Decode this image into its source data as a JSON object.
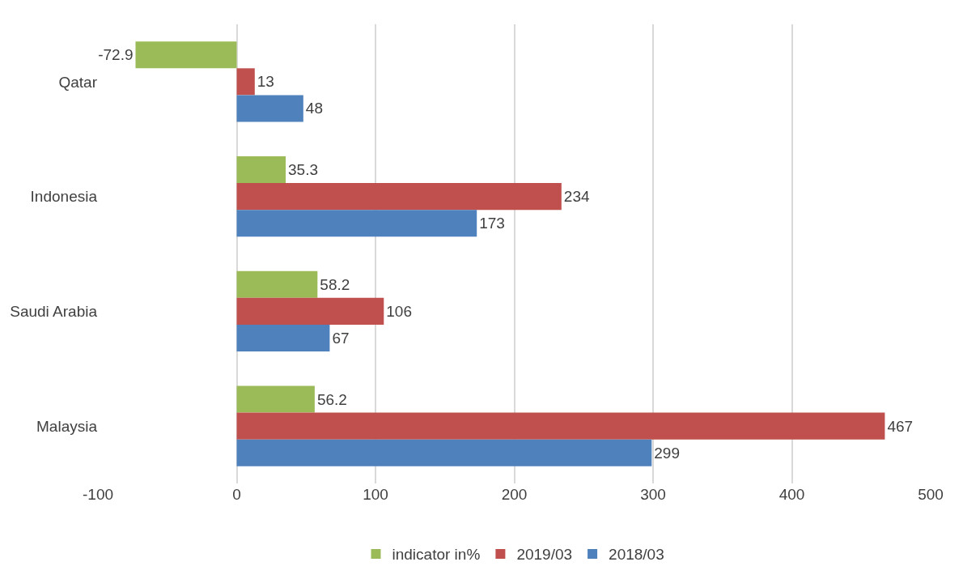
{
  "chart_data": {
    "type": "bar",
    "orientation": "horizontal",
    "categories": [
      "Qatar",
      "Indonesia",
      "Saudi Arabia",
      "Malaysia"
    ],
    "series": [
      {
        "name": "indicator in%",
        "color": "#9bbb59",
        "values": [
          -72.9,
          35.3,
          58.2,
          56.2
        ]
      },
      {
        "name": "2019/03",
        "color": "#c0504d",
        "values": [
          13,
          234,
          106,
          467
        ]
      },
      {
        "name": "2018/03",
        "color": "#4f81bd",
        "values": [
          48,
          173,
          67,
          299
        ]
      }
    ],
    "xlim": [
      -100,
      500
    ],
    "xticks": [
      -100,
      0,
      100,
      200,
      300,
      400,
      500
    ],
    "grid": "x",
    "legend": "bottom",
    "data_labels": true
  }
}
